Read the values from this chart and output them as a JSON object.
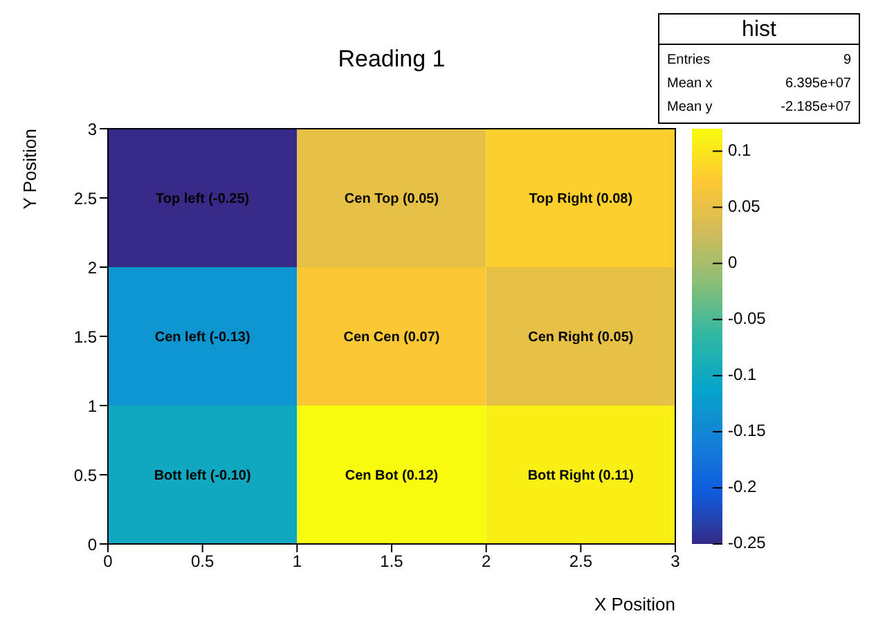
{
  "chart_data": {
    "type": "heatmap",
    "title": "Reading 1",
    "xlabel": "X Position",
    "ylabel": "Y Position",
    "cells": [
      [
        -0.25,
        0.05,
        0.08
      ],
      [
        -0.13,
        0.07,
        0.05
      ],
      [
        -0.1,
        0.12,
        0.11
      ]
    ],
    "cell_labels": [
      [
        "Top left (-0.25)",
        "Cen Top (0.05)",
        "Top Right (0.08)"
      ],
      [
        "Cen left (-0.13)",
        "Cen Cen (0.07)",
        "Cen Right (0.05)"
      ],
      [
        "Bott left (-0.10)",
        "Cen Bot (0.12)",
        "Bott Right (0.11)"
      ]
    ],
    "xlim": [
      0,
      3
    ],
    "xticks": [
      0,
      0.5,
      1,
      1.5,
      2,
      2.5,
      3
    ],
    "ylim": [
      0,
      3
    ],
    "yticks": [
      0,
      0.5,
      1,
      1.5,
      2,
      2.5,
      3
    ],
    "clim": [
      -0.25,
      0.12
    ],
    "cticks": [
      0.1,
      0.05,
      0,
      -0.05,
      -0.1,
      -0.15,
      -0.2,
      -0.25
    ],
    "annotations": [
      "hist",
      "Entries",
      "9",
      "Mean x",
      "6.395e+07",
      "Mean y",
      "-2.185e+07"
    ]
  }
}
